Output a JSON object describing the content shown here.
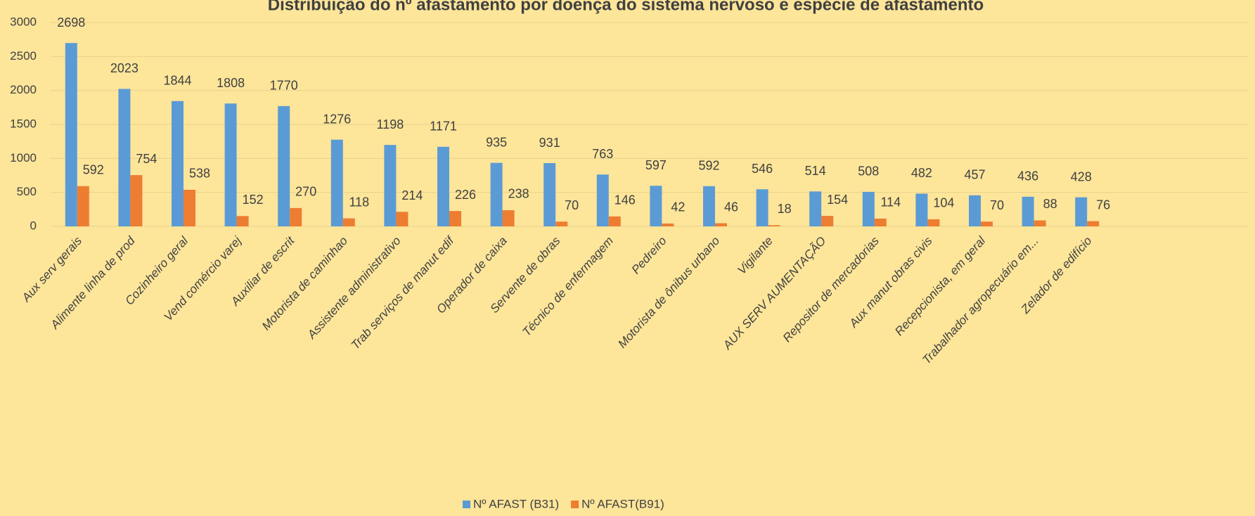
{
  "chart_data": {
    "type": "bar",
    "title": "Distribuição do nº afastamento por doença do sistema nervoso e espécie de afastamento",
    "categories": [
      "Aux serv gerais",
      "Alimente linha de prod",
      "Cozinheiro geral",
      "Vend comércio varej",
      "Auxiliar de escrit",
      "Motorista de caminhao",
      "Assistente administrativo",
      "Trab serviços de manut edif",
      "Operador de caixa",
      "Servente de obras",
      "Técnico de enfermagem",
      "Pedreiro",
      "Motorista de ônibus urbano",
      "Vigilante",
      "AUX SERV AUMENTAÇÃO",
      "Repositor de mercadorias",
      "Aux manut obras civis",
      "Recepcionista, em geral",
      "Trabalhador agropecuário em...",
      "Zelador de edifício"
    ],
    "series": [
      {
        "name": "Nº AFAST (B31)",
        "color": "#5b9bd5",
        "values": [
          2698,
          2023,
          1844,
          1808,
          1770,
          1276,
          1198,
          1171,
          935,
          931,
          763,
          597,
          592,
          546,
          514,
          508,
          482,
          457,
          436,
          428
        ]
      },
      {
        "name": "Nº AFAST(B91)",
        "color": "#ed7d31",
        "values": [
          592,
          754,
          538,
          152,
          270,
          118,
          214,
          226,
          238,
          70,
          146,
          42,
          46,
          18,
          154,
          114,
          104,
          70,
          88,
          76
        ]
      }
    ],
    "ylim": [
      0,
      3000
    ],
    "yticks": [
      0,
      500,
      1000,
      1500,
      2000,
      2500,
      3000
    ],
    "grid": true,
    "legend": "bottom"
  }
}
